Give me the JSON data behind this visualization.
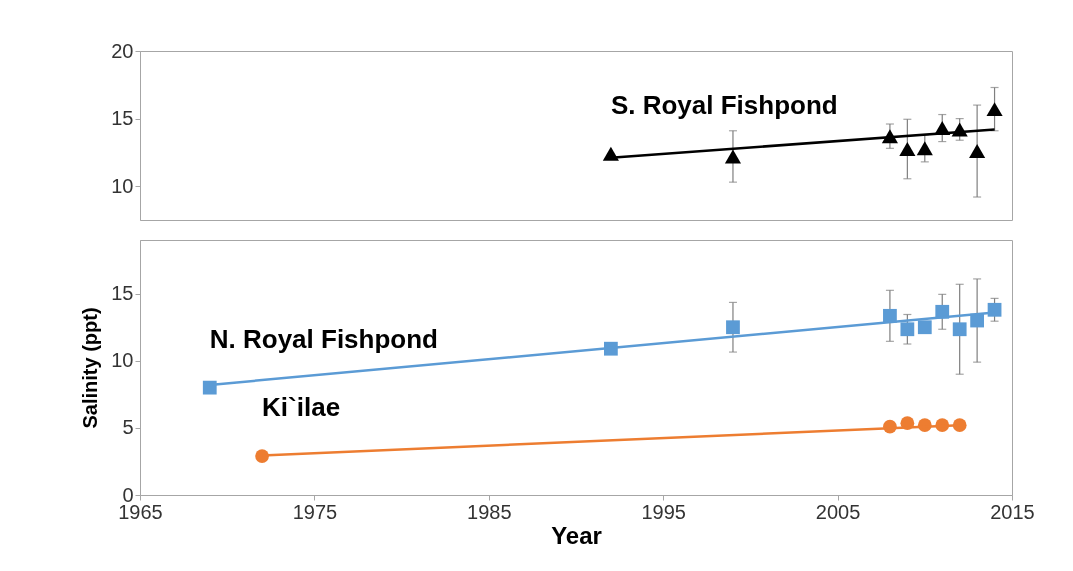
{
  "chart_data": [
    {
      "type": "scatter",
      "xlim": [
        1965,
        2015
      ],
      "xticks": [
        1965,
        1975,
        1985,
        1995,
        2005,
        2015
      ],
      "ylim": [
        7.5,
        20
      ],
      "yticks": [
        10,
        15,
        20
      ],
      "tick_labels": "y",
      "grid": false,
      "series": [
        {
          "name": "S. Royal Fishpond",
          "type": "scatter",
          "marker": "triangle",
          "color": "#000000",
          "x": [
            1992,
            1999,
            2008,
            2009,
            2010,
            2011,
            2012,
            2013,
            2014
          ],
          "values": [
            12.4,
            12.2,
            13.7,
            12.75,
            12.8,
            14.3,
            14.2,
            12.6,
            15.7
          ],
          "errors": [
            null,
            1.9,
            0.9,
            2.2,
            1.0,
            1.0,
            0.8,
            3.4,
            1.6
          ]
        },
        {
          "type": "line",
          "color": "#000000",
          "x": [
            1992,
            2014
          ],
          "values": [
            12.1,
            14.2
          ]
        }
      ]
    },
    {
      "type": "scatter",
      "xlim": [
        1965,
        2015
      ],
      "xticks": [
        1965,
        1975,
        1985,
        1995,
        2005,
        2015
      ],
      "ylim": [
        0,
        19
      ],
      "yticks": [
        0,
        5,
        10,
        15
      ],
      "xlabel": "Year",
      "ylabel": "Salinity (ppt)",
      "grid": false,
      "series": [
        {
          "name": "N. Royal Fishpond",
          "type": "scatter",
          "marker": "square",
          "color": "#5b9bd5",
          "x": [
            1969,
            1992,
            1999,
            2008,
            2009,
            2010,
            2011,
            2012,
            2013,
            2014
          ],
          "values": [
            8.0,
            10.9,
            12.5,
            13.35,
            12.35,
            12.5,
            13.65,
            12.35,
            13.0,
            13.8
          ],
          "errors": [
            null,
            null,
            1.85,
            1.9,
            1.1,
            null,
            1.3,
            3.35,
            3.1,
            0.85
          ]
        },
        {
          "type": "line",
          "color": "#5b9bd5",
          "x": [
            1969,
            2014
          ],
          "values": [
            8.2,
            13.6
          ]
        },
        {
          "name": "Ki`ilae",
          "type": "scatter",
          "marker": "circle",
          "color": "#ed7d31",
          "x": [
            1972,
            2008,
            2009,
            2010,
            2011,
            2012
          ],
          "values": [
            2.9,
            5.1,
            5.35,
            5.2,
            5.2,
            5.2
          ]
        },
        {
          "type": "line",
          "color": "#ed7d31",
          "x": [
            1972,
            2012
          ],
          "values": [
            2.95,
            5.2
          ]
        }
      ]
    }
  ]
}
